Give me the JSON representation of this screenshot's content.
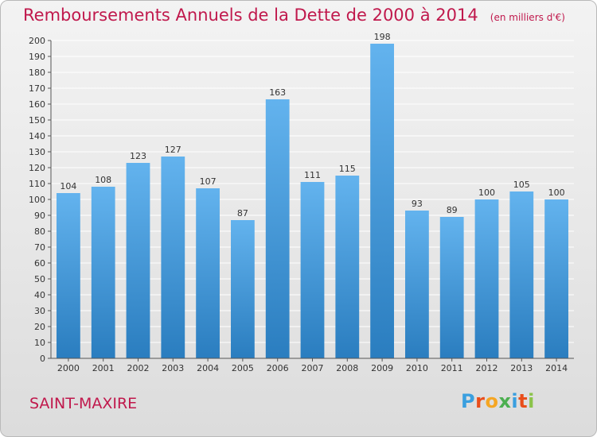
{
  "title": "Remboursements Annuels de la Dette de 2000 à 2014",
  "unit_note": "(en milliers d'€)",
  "town": "SAINT-MAXIRE",
  "logo": {
    "letters": [
      "P",
      "r",
      "o",
      "x",
      "i",
      "t",
      "i"
    ],
    "colors": [
      "#3a9fdf",
      "#e94e1b",
      "#f5a623",
      "#4caf50",
      "#3a9fdf",
      "#e94e1b",
      "#8bc34a"
    ]
  },
  "colors": {
    "title": "#c0184c",
    "bar_top": "#63b3ee",
    "bar_bottom": "#2a7dbf",
    "grid": "#ffffff"
  },
  "chart_data": {
    "type": "bar",
    "title": "Remboursements Annuels de la Dette de 2000 à 2014",
    "subtitle": "(en milliers d'€)",
    "categories": [
      "2000",
      "2001",
      "2002",
      "2003",
      "2004",
      "2005",
      "2006",
      "2007",
      "2008",
      "2009",
      "2010",
      "2011",
      "2012",
      "2013",
      "2014"
    ],
    "values": [
      104,
      108,
      123,
      127,
      107,
      87,
      163,
      111,
      115,
      198,
      93,
      89,
      100,
      105,
      100
    ],
    "ylim": [
      0,
      200
    ],
    "ytick_step": 10,
    "grid": true
  }
}
